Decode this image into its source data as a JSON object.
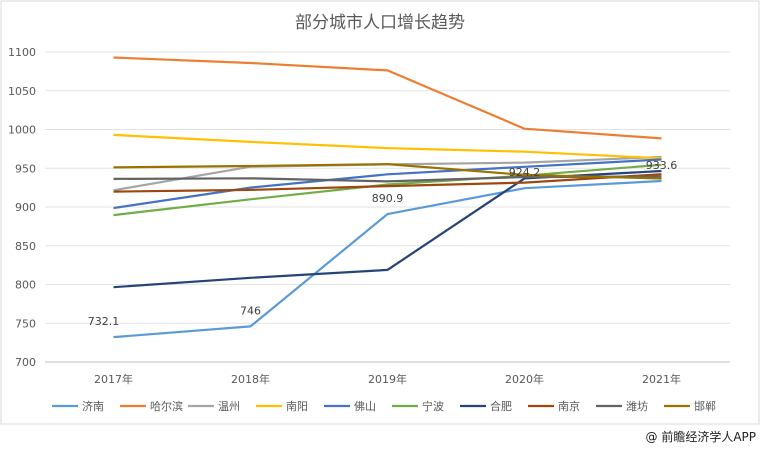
{
  "chart_data": {
    "type": "line",
    "title": "部分城市人口增长趋势",
    "xlabel": "",
    "ylabel": "",
    "categories": [
      "2017年",
      "2018年",
      "2019年",
      "2020年",
      "2021年"
    ],
    "ylim": [
      700,
      1100
    ],
    "yticks": [
      700,
      750,
      800,
      850,
      900,
      950,
      1000,
      1050,
      1100
    ],
    "grid": true,
    "legend": "bottom",
    "series": [
      {
        "name": "济南",
        "color": "#5b9bd5",
        "values": [
          732.1,
          746,
          890.9,
          924.2,
          933.6
        ]
      },
      {
        "name": "哈尔滨",
        "color": "#ed7d31",
        "values": [
          1092.9,
          1085.8,
          1076.3,
          1001.0,
          988.5
        ]
      },
      {
        "name": "温州",
        "color": "#a5a5a5",
        "values": [
          921.5,
          952.0,
          955.0,
          957.3,
          964.5
        ]
      },
      {
        "name": "南阳",
        "color": "#ffc000",
        "values": [
          993.0,
          984.0,
          976.0,
          971.3,
          962.9
        ]
      },
      {
        "name": "佛山",
        "color": "#4472c4",
        "values": [
          898.7,
          925.0,
          942.2,
          951.9,
          961.3
        ]
      },
      {
        "name": "宁波",
        "color": "#70ad47",
        "values": [
          889.5,
          910.0,
          929.0,
          940.4,
          954.4
        ]
      },
      {
        "name": "合肥",
        "color": "#264478",
        "values": [
          796.5,
          808.7,
          818.9,
          936.9,
          946.5
        ]
      },
      {
        "name": "南京",
        "color": "#9e480e",
        "values": [
          919.9,
          922.0,
          927.0,
          931.5,
          942.3
        ]
      },
      {
        "name": "潍坊",
        "color": "#636363",
        "values": [
          936.3,
          937.0,
          933.0,
          938.7,
          939.4
        ]
      },
      {
        "name": "邯郸",
        "color": "#997300",
        "values": [
          951.1,
          952.9,
          955.3,
          941.4,
          936.8
        ]
      }
    ],
    "data_labels": [
      {
        "series": "济南",
        "index": 0,
        "text": "732.1"
      },
      {
        "series": "济南",
        "index": 1,
        "text": "746"
      },
      {
        "series": "济南",
        "index": 2,
        "text": "890.9"
      },
      {
        "series": "济南",
        "index": 3,
        "text": "924.2"
      },
      {
        "series": "济南",
        "index": 4,
        "text": "933.6"
      }
    ]
  },
  "watermark": "@ 前瞻经济学人APP"
}
